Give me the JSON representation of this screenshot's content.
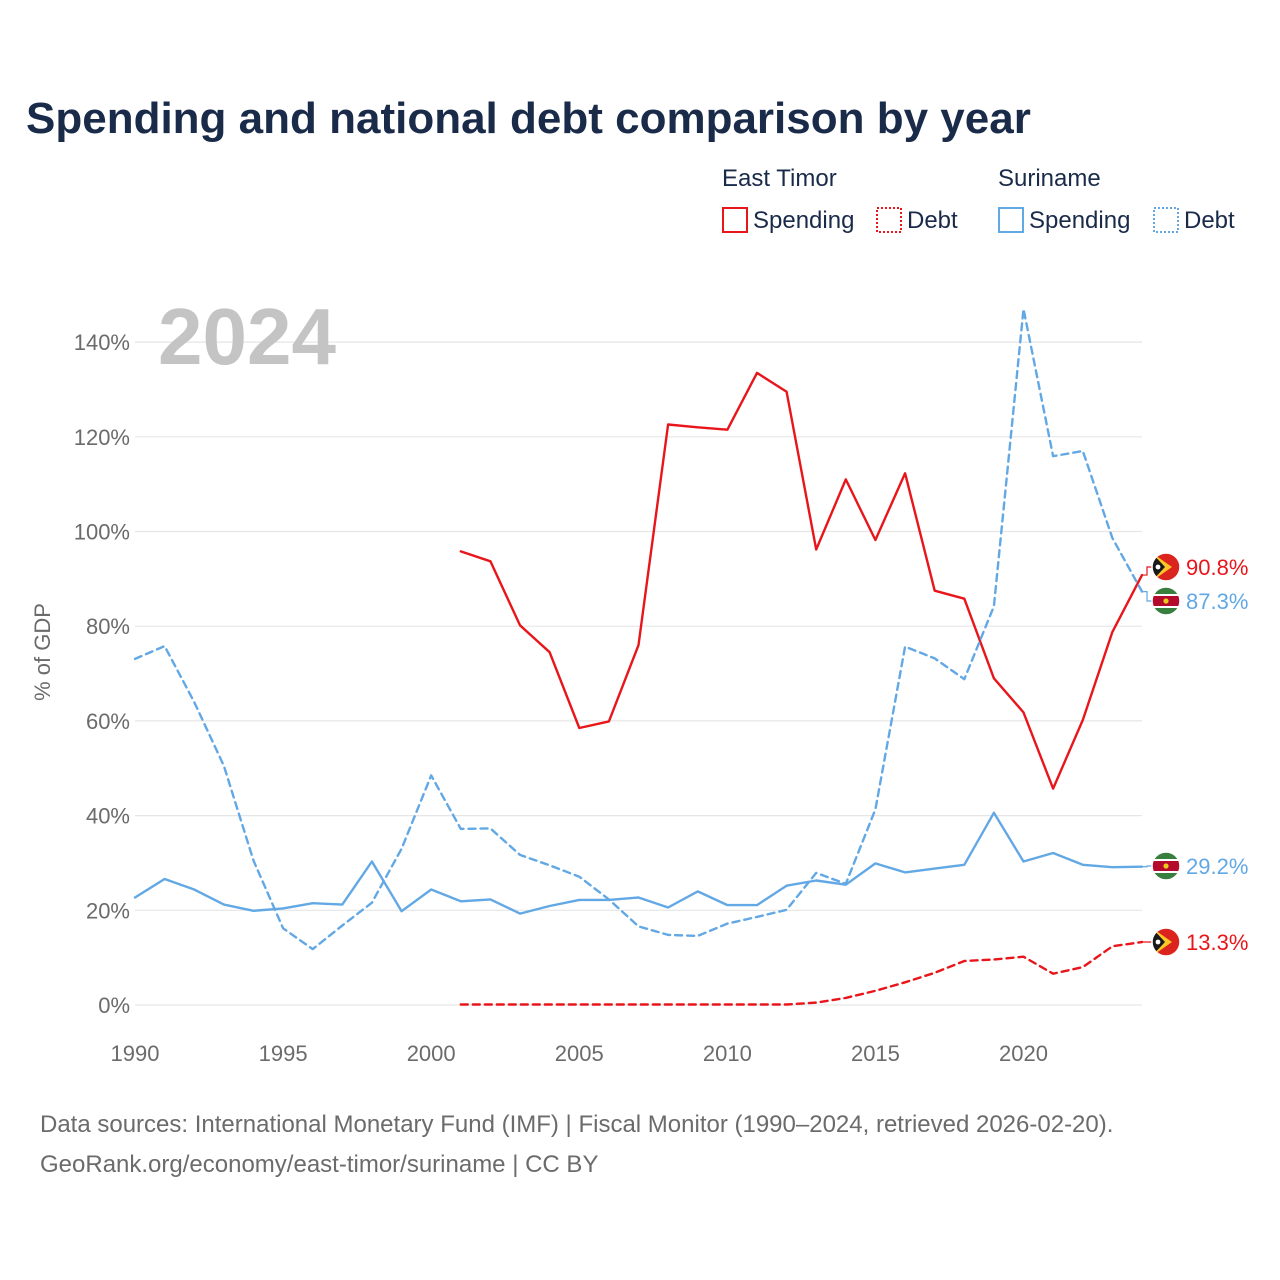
{
  "chart_data": {
    "type": "line",
    "title": "Spending and national debt comparison by year",
    "ylabel": "% of GDP",
    "xlabel": "",
    "year_watermark": "2024",
    "xlim": [
      1990,
      2024
    ],
    "ylim": [
      0,
      150
    ],
    "x_ticks": [
      1990,
      1995,
      2000,
      2005,
      2010,
      2015,
      2020
    ],
    "x_tick_labels": [
      "1990",
      "1995",
      "2000",
      "2005",
      "2010",
      "2015",
      "2020"
    ],
    "y_ticks": [
      0,
      20,
      40,
      60,
      80,
      100,
      120,
      140
    ],
    "y_tick_labels": [
      "0%",
      "20%",
      "40%",
      "60%",
      "80%",
      "100%",
      "120%",
      "140%"
    ],
    "grid": true,
    "legend": {
      "position": "top-right",
      "groups": [
        {
          "name": "East Timor",
          "items": [
            "Spending",
            "Debt"
          ]
        },
        {
          "name": "Suriname",
          "items": [
            "Spending",
            "Debt"
          ]
        }
      ]
    },
    "colors": {
      "east_timor": "#e8161b",
      "suriname": "#62a8e5"
    },
    "series": [
      {
        "name": "East Timor Spending",
        "country": "East Timor",
        "metric": "Spending",
        "style": "solid",
        "color": "#e8161b",
        "end_label": "90.8%",
        "x": [
          2001,
          2002,
          2003,
          2004,
          2005,
          2006,
          2007,
          2008,
          2009,
          2010,
          2011,
          2012,
          2013,
          2014,
          2015,
          2016,
          2017,
          2018,
          2019,
          2020,
          2021,
          2022,
          2023,
          2024
        ],
        "values": [
          95.8,
          93.7,
          80.2,
          74.5,
          58.5,
          59.9,
          76.0,
          122.6,
          122.0,
          121.5,
          133.5,
          129.5,
          96.2,
          111.0,
          98.2,
          112.3,
          87.5,
          85.8,
          69.0,
          61.8,
          45.7,
          60.2,
          78.8,
          90.8
        ]
      },
      {
        "name": "East Timor Debt",
        "country": "East Timor",
        "metric": "Debt",
        "style": "dashed",
        "color": "#e8161b",
        "end_label": "13.3%",
        "x": [
          2001,
          2002,
          2003,
          2004,
          2005,
          2006,
          2007,
          2008,
          2009,
          2010,
          2011,
          2012,
          2013,
          2014,
          2015,
          2016,
          2017,
          2018,
          2019,
          2020,
          2021,
          2022,
          2023,
          2024
        ],
        "values": [
          0.1,
          0.1,
          0.1,
          0.1,
          0.1,
          0.1,
          0.1,
          0.1,
          0.1,
          0.1,
          0.1,
          0.1,
          0.5,
          1.5,
          3.0,
          4.8,
          6.8,
          9.3,
          9.6,
          10.2,
          6.6,
          8.0,
          12.4,
          13.3
        ]
      },
      {
        "name": "Suriname Spending",
        "country": "Suriname",
        "metric": "Spending",
        "style": "solid",
        "color": "#62a8e5",
        "end_label": "29.2%",
        "x": [
          1990,
          1991,
          1992,
          1993,
          1994,
          1995,
          1996,
          1997,
          1998,
          1999,
          2000,
          2001,
          2002,
          2003,
          2004,
          2005,
          2006,
          2007,
          2008,
          2009,
          2010,
          2011,
          2012,
          2013,
          2014,
          2015,
          2016,
          2017,
          2018,
          2019,
          2020,
          2021,
          2022,
          2023,
          2024
        ],
        "values": [
          22.7,
          26.6,
          24.4,
          21.2,
          19.9,
          20.4,
          21.5,
          21.2,
          30.3,
          19.8,
          24.4,
          21.9,
          22.3,
          19.3,
          20.9,
          22.2,
          22.2,
          22.7,
          20.6,
          24.0,
          21.1,
          21.1,
          25.2,
          26.3,
          25.4,
          29.9,
          28.0,
          28.8,
          29.6,
          40.6,
          30.3,
          32.1,
          29.6,
          29.1,
          29.2
        ]
      },
      {
        "name": "Suriname Debt",
        "country": "Suriname",
        "metric": "Debt",
        "style": "dashed",
        "color": "#62a8e5",
        "end_label": "87.3%",
        "x": [
          1990,
          1991,
          1992,
          1993,
          1994,
          1995,
          1996,
          1997,
          1998,
          1999,
          2000,
          2001,
          2002,
          2003,
          2004,
          2005,
          2006,
          2007,
          2008,
          2009,
          2010,
          2011,
          2012,
          2013,
          2014,
          2015,
          2016,
          2017,
          2018,
          2019,
          2020,
          2021,
          2022,
          2023,
          2024
        ],
        "values": [
          73.1,
          75.8,
          64.0,
          50.5,
          30.5,
          16.2,
          11.8,
          16.8,
          21.6,
          33.0,
          48.5,
          37.2,
          37.3,
          31.7,
          29.5,
          27.1,
          22.3,
          16.6,
          14.8,
          14.6,
          17.2,
          18.6,
          20.1,
          27.9,
          25.6,
          41.3,
          75.7,
          73.2,
          68.8,
          84.2,
          147.0,
          115.9,
          117.0,
          98.6,
          87.3
        ]
      }
    ]
  },
  "footer": {
    "sources": "Data sources: International Monetary Fund (IMF) | Fiscal Monitor (1990–2024, retrieved 2026-02-20).",
    "link": "GeoRank.org/economy/east-timor/suriname | CC BY"
  }
}
